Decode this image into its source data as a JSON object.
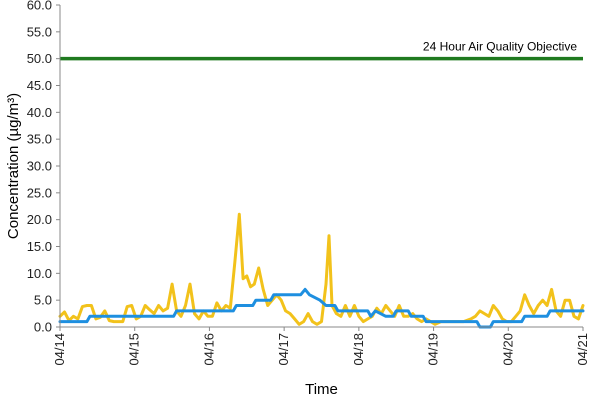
{
  "chart_data": {
    "type": "line",
    "xlabel": "Time",
    "ylabel": "Concentration (µg/m³)",
    "ylim": [
      0,
      60
    ],
    "y_ticks": [
      "0.0",
      "5.0",
      "10.0",
      "15.0",
      "20.0",
      "25.0",
      "30.0",
      "35.0",
      "40.0",
      "45.0",
      "50.0",
      "55.0",
      "60.0"
    ],
    "x_ticks": [
      "04/14",
      "04/15",
      "04/16",
      "04/17",
      "04/18",
      "04/19",
      "04/20",
      "04/21"
    ],
    "xlim_days": [
      0,
      7
    ],
    "grid": false,
    "objective": {
      "label": "24 Hour Air Quality Objective",
      "value": 50,
      "color": "#1f7a1f"
    },
    "series": [
      {
        "color": "#f2c21b",
        "points": [
          [
            0.0,
            2.0
          ],
          [
            0.06,
            2.8
          ],
          [
            0.12,
            1.2
          ],
          [
            0.18,
            2.0
          ],
          [
            0.24,
            1.5
          ],
          [
            0.3,
            3.8
          ],
          [
            0.36,
            4.0
          ],
          [
            0.42,
            4.0
          ],
          [
            0.48,
            1.5
          ],
          [
            0.54,
            1.8
          ],
          [
            0.6,
            3.0
          ],
          [
            0.66,
            1.2
          ],
          [
            0.72,
            1.0
          ],
          [
            0.78,
            1.0
          ],
          [
            0.84,
            1.0
          ],
          [
            0.9,
            3.8
          ],
          [
            0.96,
            4.0
          ],
          [
            1.02,
            1.5
          ],
          [
            1.08,
            2.0
          ],
          [
            1.14,
            4.0
          ],
          [
            1.2,
            3.2
          ],
          [
            1.26,
            2.5
          ],
          [
            1.32,
            4.0
          ],
          [
            1.38,
            3.0
          ],
          [
            1.44,
            3.5
          ],
          [
            1.5,
            8.0
          ],
          [
            1.56,
            3.0
          ],
          [
            1.62,
            2.0
          ],
          [
            1.68,
            4.0
          ],
          [
            1.74,
            8.0
          ],
          [
            1.8,
            2.5
          ],
          [
            1.86,
            1.5
          ],
          [
            1.92,
            3.0
          ],
          [
            1.98,
            2.0
          ],
          [
            2.04,
            2.0
          ],
          [
            2.1,
            4.5
          ],
          [
            2.16,
            3.0
          ],
          [
            2.22,
            4.0
          ],
          [
            2.28,
            3.5
          ],
          [
            2.34,
            12.0
          ],
          [
            2.4,
            21.0
          ],
          [
            2.45,
            9.0
          ],
          [
            2.5,
            9.5
          ],
          [
            2.55,
            7.5
          ],
          [
            2.6,
            8.0
          ],
          [
            2.66,
            11.0
          ],
          [
            2.72,
            7.0
          ],
          [
            2.78,
            4.0
          ],
          [
            2.84,
            5.0
          ],
          [
            2.9,
            6.0
          ],
          [
            2.96,
            5.0
          ],
          [
            3.02,
            3.0
          ],
          [
            3.08,
            2.5
          ],
          [
            3.14,
            1.5
          ],
          [
            3.2,
            0.5
          ],
          [
            3.26,
            1.0
          ],
          [
            3.32,
            2.5
          ],
          [
            3.38,
            1.0
          ],
          [
            3.44,
            0.5
          ],
          [
            3.5,
            1.0
          ],
          [
            3.56,
            8.0
          ],
          [
            3.6,
            17.0
          ],
          [
            3.64,
            4.0
          ],
          [
            3.7,
            2.5
          ],
          [
            3.76,
            2.0
          ],
          [
            3.82,
            4.0
          ],
          [
            3.88,
            2.0
          ],
          [
            3.94,
            4.0
          ],
          [
            4.0,
            2.0
          ],
          [
            4.06,
            1.0
          ],
          [
            4.12,
            1.5
          ],
          [
            4.18,
            2.0
          ],
          [
            4.24,
            3.5
          ],
          [
            4.3,
            2.5
          ],
          [
            4.36,
            4.0
          ],
          [
            4.42,
            3.0
          ],
          [
            4.48,
            2.0
          ],
          [
            4.54,
            4.0
          ],
          [
            4.6,
            2.0
          ],
          [
            4.66,
            2.0
          ],
          [
            4.72,
            2.5
          ],
          [
            4.78,
            1.5
          ],
          [
            4.84,
            1.0
          ],
          [
            4.9,
            1.5
          ],
          [
            4.96,
            1.0
          ],
          [
            5.02,
            0.5
          ],
          [
            5.1,
            1.0
          ],
          [
            5.2,
            1.0
          ],
          [
            5.3,
            1.0
          ],
          [
            5.4,
            1.0
          ],
          [
            5.5,
            1.5
          ],
          [
            5.56,
            2.0
          ],
          [
            5.62,
            3.0
          ],
          [
            5.68,
            2.5
          ],
          [
            5.74,
            2.0
          ],
          [
            5.8,
            4.0
          ],
          [
            5.86,
            3.0
          ],
          [
            5.92,
            1.5
          ],
          [
            5.98,
            1.0
          ],
          [
            6.04,
            1.0
          ],
          [
            6.1,
            2.0
          ],
          [
            6.16,
            3.0
          ],
          [
            6.22,
            6.0
          ],
          [
            6.28,
            4.0
          ],
          [
            6.34,
            2.5
          ],
          [
            6.4,
            4.0
          ],
          [
            6.46,
            5.0
          ],
          [
            6.52,
            4.0
          ],
          [
            6.58,
            7.0
          ],
          [
            6.64,
            3.0
          ],
          [
            6.7,
            2.0
          ],
          [
            6.76,
            5.0
          ],
          [
            6.82,
            5.0
          ],
          [
            6.88,
            2.0
          ],
          [
            6.94,
            1.5
          ],
          [
            7.0,
            4.0
          ]
        ]
      },
      {
        "color": "#1e8fe0",
        "points": [
          [
            0.0,
            1.0
          ],
          [
            0.36,
            1.0
          ],
          [
            0.4,
            2.0
          ],
          [
            1.52,
            2.0
          ],
          [
            1.56,
            3.0
          ],
          [
            2.32,
            3.0
          ],
          [
            2.36,
            4.0
          ],
          [
            2.58,
            4.0
          ],
          [
            2.62,
            5.0
          ],
          [
            2.82,
            5.0
          ],
          [
            2.86,
            6.0
          ],
          [
            3.22,
            6.0
          ],
          [
            3.28,
            7.0
          ],
          [
            3.34,
            6.0
          ],
          [
            3.48,
            5.0
          ],
          [
            3.56,
            4.0
          ],
          [
            3.68,
            4.0
          ],
          [
            3.72,
            3.0
          ],
          [
            4.12,
            3.0
          ],
          [
            4.16,
            2.0
          ],
          [
            4.22,
            3.0
          ],
          [
            4.36,
            2.0
          ],
          [
            4.46,
            2.0
          ],
          [
            4.5,
            3.0
          ],
          [
            4.66,
            3.0
          ],
          [
            4.7,
            2.0
          ],
          [
            4.86,
            2.0
          ],
          [
            4.9,
            1.0
          ],
          [
            5.58,
            1.0
          ],
          [
            5.62,
            0.0
          ],
          [
            5.76,
            0.0
          ],
          [
            5.8,
            1.0
          ],
          [
            6.18,
            1.0
          ],
          [
            6.22,
            2.0
          ],
          [
            6.52,
            2.0
          ],
          [
            6.56,
            3.0
          ],
          [
            7.0,
            3.0
          ]
        ]
      }
    ]
  }
}
